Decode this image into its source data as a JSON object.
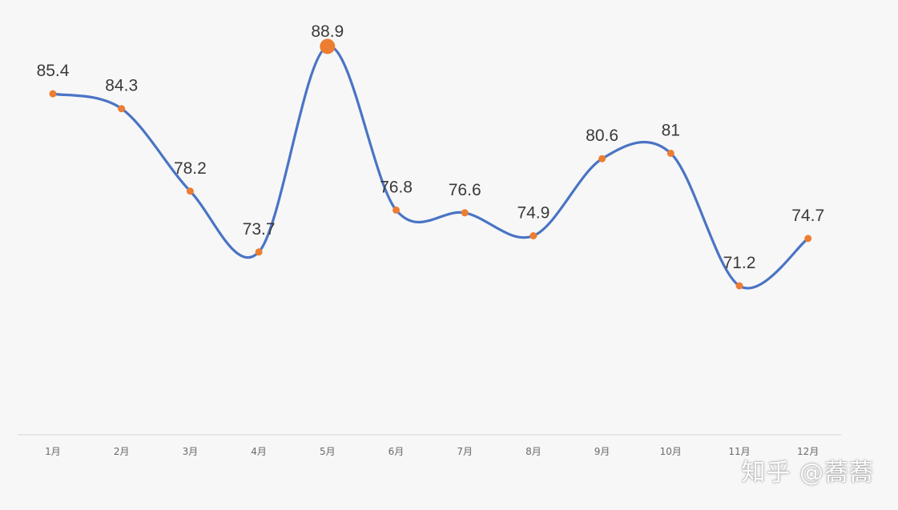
{
  "chart_data": {
    "type": "line",
    "categories": [
      "1月",
      "2月",
      "3月",
      "4月",
      "5月",
      "6月",
      "7月",
      "8月",
      "9月",
      "10月",
      "11月",
      "12月"
    ],
    "series": [
      {
        "values": [
          85.4,
          84.3,
          78.2,
          73.7,
          88.9,
          76.8,
          76.6,
          74.9,
          80.6,
          81,
          71.2,
          74.7
        ]
      }
    ],
    "data_labels": [
      "85.4",
      "84.3",
      "78.2",
      "73.7",
      "88.9",
      "76.8",
      "76.6",
      "74.9",
      "80.6",
      "81",
      "71.2",
      "74.7"
    ],
    "highlight_index": 4,
    "ylim": [
      55,
      91
    ],
    "smooth": true,
    "grid": false,
    "y_axis_visible": false
  },
  "colors": {
    "line": "#4a74c4",
    "marker": "#ed7d31",
    "axis": "#d4d4d4"
  },
  "watermark": "知乎 @蕎蕎"
}
